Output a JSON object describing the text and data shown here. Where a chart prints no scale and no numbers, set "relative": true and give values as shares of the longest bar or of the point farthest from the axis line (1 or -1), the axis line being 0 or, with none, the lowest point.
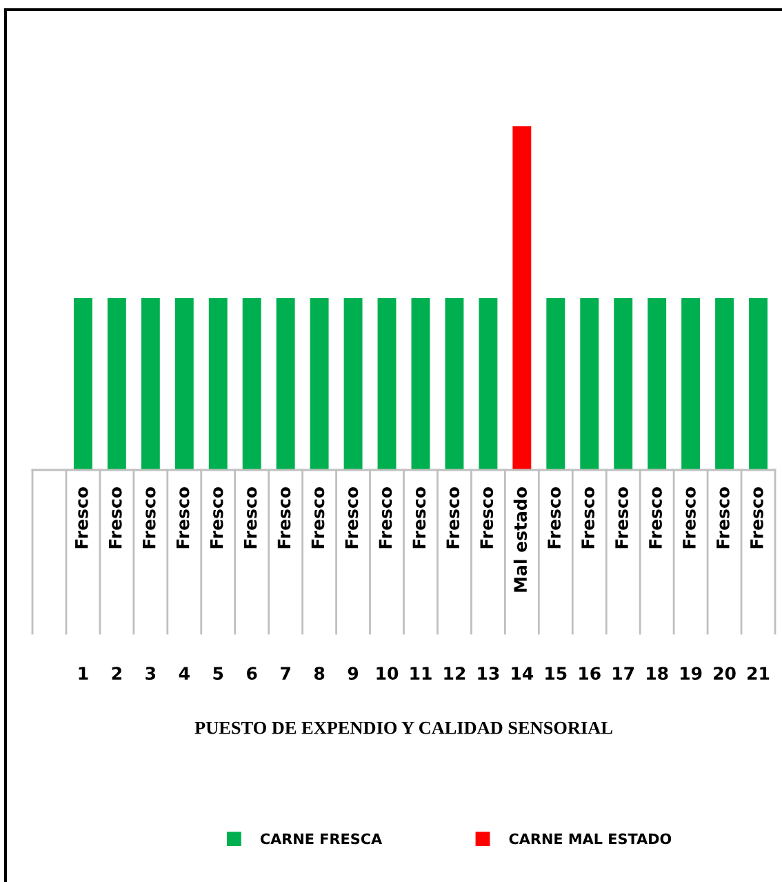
{
  "chart_data": {
    "type": "bar",
    "relative": true,
    "xlabel": "PUESTO DE EXPENDIO Y CALIDAD SENSORIAL",
    "categories": [
      null,
      "1",
      "2",
      "3",
      "4",
      "5",
      "6",
      "7",
      "8",
      "9",
      "10",
      "11",
      "12",
      "13",
      "14",
      "15",
      "16",
      "17",
      "18",
      "19",
      "20",
      "21"
    ],
    "series": [
      {
        "name": "CARNE FRESCA",
        "color": "#00b050",
        "values": [
          null,
          0.5,
          0.5,
          0.5,
          0.5,
          0.5,
          0.5,
          0.5,
          0.5,
          0.5,
          0.5,
          0.5,
          0.5,
          0.5,
          null,
          0.5,
          0.5,
          0.5,
          0.5,
          0.5,
          0.5,
          0.5
        ]
      },
      {
        "name": "CARNE MAL ESTADO",
        "color": "#ff0000",
        "values": [
          null,
          null,
          null,
          null,
          null,
          null,
          null,
          null,
          null,
          null,
          null,
          null,
          null,
          null,
          1,
          null,
          null,
          null,
          null,
          null,
          null,
          null
        ]
      }
    ],
    "annotations": [
      "Fresco",
      "Fresco",
      "Fresco",
      "Fresco",
      "Fresco",
      "Fresco",
      "Fresco",
      "Fresco",
      "Fresco",
      "Fresco",
      "Fresco",
      "Fresco",
      "Fresco",
      "Mal estado",
      "Fresco",
      "Fresco",
      "Fresco",
      "Fresco",
      "Fresco",
      "Fresco",
      "Fresco"
    ],
    "grid": false,
    "legend": "bottom"
  }
}
